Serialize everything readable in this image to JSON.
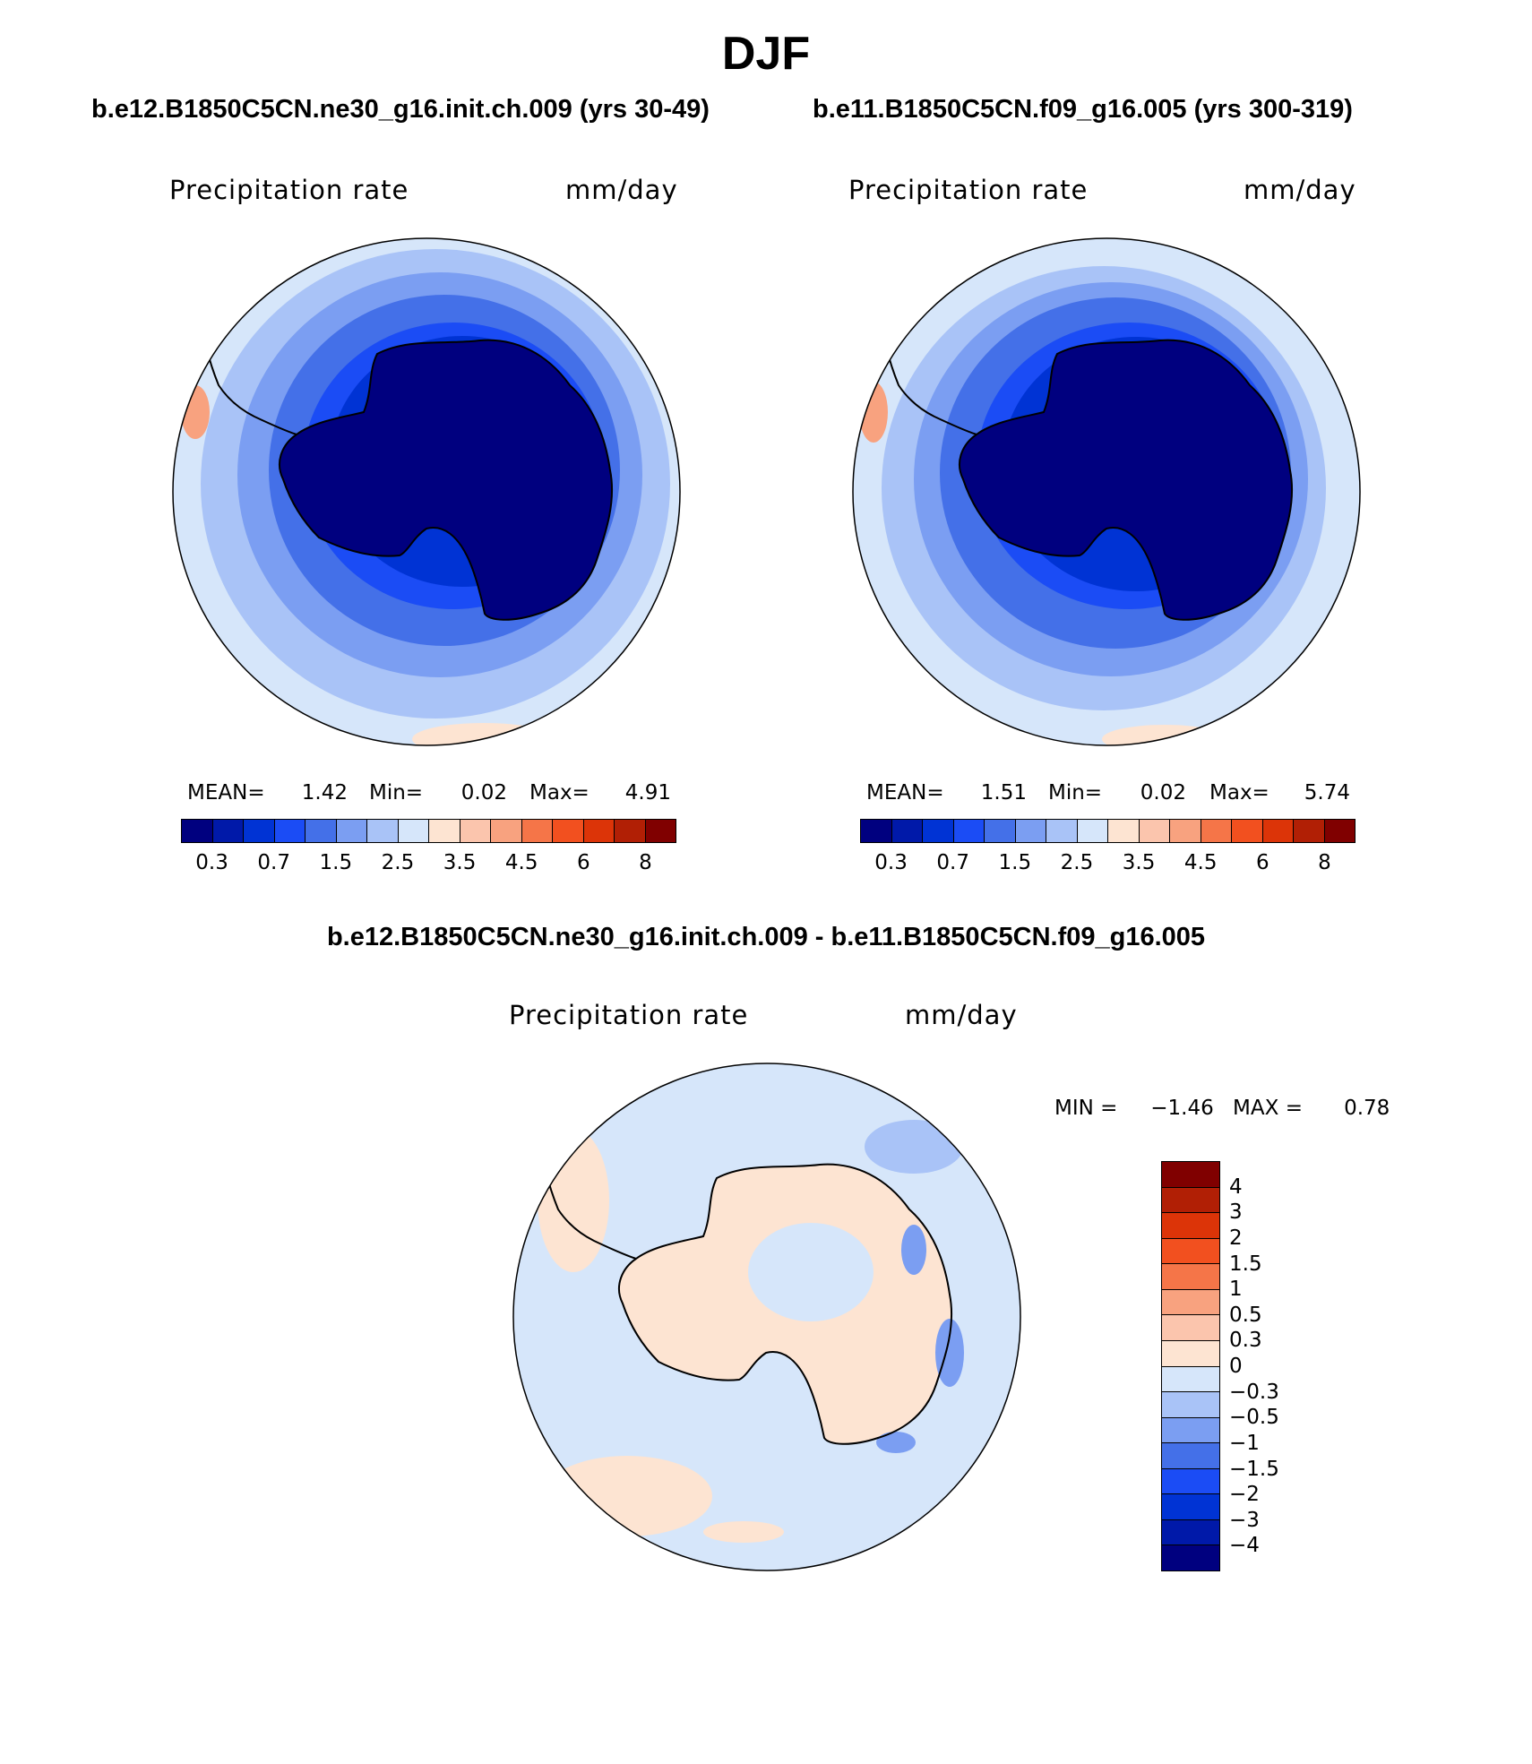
{
  "title": "DJF",
  "panels": {
    "left": {
      "case": "b.e12.B1850C5CN.ne30_g16.init.ch.009 (yrs 30-49)",
      "variable": "Precipitation rate",
      "units": "mm/day",
      "stats": {
        "mean_label": "MEAN=",
        "mean_value": "1.42",
        "min_label": "Min=",
        "min_value": "0.02",
        "max_label": "Max=",
        "max_value": "4.91"
      }
    },
    "right": {
      "case": "b.e11.B1850C5CN.f09_g16.005 (yrs 300-319)",
      "variable": "Precipitation rate",
      "units": "mm/day",
      "stats": {
        "mean_label": "MEAN=",
        "mean_value": "1.51",
        "min_label": "Min=",
        "min_value": "0.02",
        "max_label": "Max=",
        "max_value": "5.74"
      }
    },
    "diff": {
      "case": "b.e12.B1850C5CN.ne30_g16.init.ch.009 - b.e11.B1850C5CN.f09_g16.005",
      "variable": "Precipitation rate",
      "units": "mm/day",
      "stats": {
        "min_label": "MIN =",
        "min_value": "−1.46",
        "max_label": "MAX =",
        "max_value": "0.78"
      }
    }
  },
  "colorbar_abs": {
    "colors": [
      "#00007f",
      "#0019a9",
      "#0033d4",
      "#1b4cf5",
      "#4470e8",
      "#7b9ef2",
      "#a9c3f7",
      "#d6e6fa",
      "#fde4d2",
      "#fbc5ad",
      "#f8a27f",
      "#f57548",
      "#f2501f",
      "#dc3408",
      "#b11f05",
      "#800000"
    ],
    "ticks": [
      "0.3",
      "0.7",
      "1.5",
      "2.5",
      "3.5",
      "4.5",
      "6",
      "8"
    ]
  },
  "colorbar_diff": {
    "colors": [
      "#800000",
      "#b11f05",
      "#dc3408",
      "#f2501f",
      "#f57548",
      "#f8a27f",
      "#fbc5ad",
      "#fde4d2",
      "#d6e6fa",
      "#a9c3f7",
      "#7b9ef2",
      "#4470e8",
      "#1b4cf5",
      "#0033d4",
      "#0019a9",
      "#00007f"
    ],
    "ticks": [
      "4",
      "3",
      "2",
      "1.5",
      "1",
      "0.5",
      "0.3",
      "0",
      "−0.3",
      "−0.5",
      "−1",
      "−1.5",
      "−2",
      "−3",
      "−4"
    ]
  }
}
